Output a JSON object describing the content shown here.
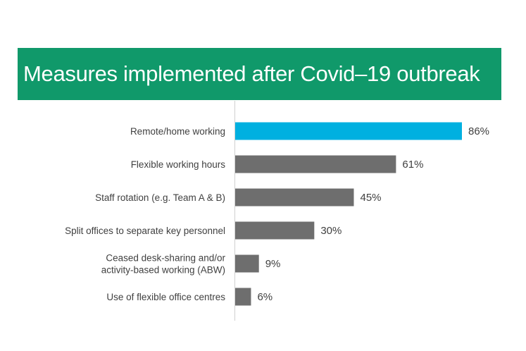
{
  "chart_data": {
    "type": "bar",
    "orientation": "horizontal",
    "title": "Measures implemented after Covid–19 outbreak",
    "categories": [
      [
        "Remote/home working"
      ],
      [
        "Flexible working hours"
      ],
      [
        "Staff rotation (e.g. Team A & B)"
      ],
      [
        "Split offices to separate key personnel"
      ],
      [
        "Ceased desk-sharing and/or",
        "activity-based working (ABW)"
      ],
      [
        "Use of flexible office centres"
      ]
    ],
    "values": [
      86,
      61,
      45,
      30,
      9,
      6
    ],
    "value_labels": [
      "86%",
      "61%",
      "45%",
      "30%",
      "9%",
      "6%"
    ],
    "unit": "%",
    "xlim": [
      0,
      100
    ],
    "grid": false,
    "legend": "none",
    "highlight_index": 0
  },
  "colors": {
    "banner": "#10996a",
    "highlight_bar": "#00b0e0",
    "default_bar": "#6e6e6e",
    "axis": "#d0d0d0",
    "text": "#404040"
  }
}
